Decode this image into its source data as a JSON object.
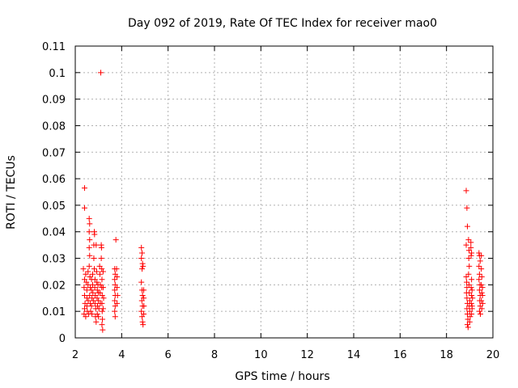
{
  "chart_data": {
    "type": "scatter",
    "title": "Day 092 of 2019, Rate Of TEC Index for receiver mao0",
    "xlabel": "GPS time / hours",
    "ylabel": "ROTI / TECUs",
    "xlim": [
      2,
      20
    ],
    "ylim": [
      0,
      0.11
    ],
    "xticks": [
      2,
      4,
      6,
      8,
      10,
      12,
      14,
      16,
      18,
      20
    ],
    "xtick_labels": [
      "2",
      "4",
      "6",
      "8",
      "10",
      "12",
      "14",
      "16",
      "18",
      "20"
    ],
    "yticks": [
      0,
      0.01,
      0.02,
      0.03,
      0.04,
      0.05,
      0.06,
      0.07,
      0.08,
      0.09,
      0.1,
      0.11
    ],
    "ytick_labels": [
      "0",
      "0.01",
      "0.02",
      "0.03",
      "0.04",
      "0.05",
      "0.06",
      "0.07",
      "0.08",
      "0.09",
      "0.1",
      "0.11"
    ],
    "grid": true,
    "marker": "+",
    "color": "#ff0000",
    "series": [
      {
        "points": [
          [
            2.4,
            0.0565
          ],
          [
            2.4,
            0.049
          ],
          [
            2.35,
            0.026
          ],
          [
            2.4,
            0.022
          ],
          [
            2.38,
            0.019
          ],
          [
            2.4,
            0.016
          ],
          [
            2.42,
            0.013
          ],
          [
            2.4,
            0.011
          ],
          [
            2.38,
            0.009
          ],
          [
            2.45,
            0.008
          ],
          [
            2.45,
            0.024
          ],
          [
            2.48,
            0.021
          ],
          [
            2.5,
            0.018
          ],
          [
            2.5,
            0.015
          ],
          [
            2.5,
            0.012
          ],
          [
            2.52,
            0.01
          ],
          [
            2.55,
            0.025
          ],
          [
            2.55,
            0.02
          ],
          [
            2.56,
            0.014
          ],
          [
            2.58,
            0.009
          ],
          [
            2.6,
            0.045
          ],
          [
            2.62,
            0.043
          ],
          [
            2.6,
            0.04
          ],
          [
            2.62,
            0.037
          ],
          [
            2.6,
            0.034
          ],
          [
            2.62,
            0.031
          ],
          [
            2.6,
            0.027
          ],
          [
            2.63,
            0.023
          ],
          [
            2.65,
            0.019
          ],
          [
            2.62,
            0.016
          ],
          [
            2.65,
            0.013
          ],
          [
            2.66,
            0.01
          ],
          [
            2.7,
            0.022
          ],
          [
            2.7,
            0.018
          ],
          [
            2.72,
            0.015
          ],
          [
            2.7,
            0.012
          ],
          [
            2.72,
            0.009
          ],
          [
            2.75,
            0.024
          ],
          [
            2.75,
            0.02
          ],
          [
            2.76,
            0.017
          ],
          [
            2.78,
            0.014
          ],
          [
            2.8,
            0.035
          ],
          [
            2.82,
            0.04
          ],
          [
            2.83,
            0.039
          ],
          [
            2.8,
            0.03
          ],
          [
            2.82,
            0.026
          ],
          [
            2.85,
            0.022
          ],
          [
            2.84,
            0.019
          ],
          [
            2.86,
            0.016
          ],
          [
            2.85,
            0.013
          ],
          [
            2.88,
            0.011
          ],
          [
            2.87,
            0.008
          ],
          [
            2.9,
            0.006
          ],
          [
            2.9,
            0.035
          ],
          [
            2.92,
            0.025
          ],
          [
            2.93,
            0.021
          ],
          [
            2.95,
            0.018
          ],
          [
            2.94,
            0.015
          ],
          [
            2.96,
            0.012
          ],
          [
            2.95,
            0.009
          ],
          [
            2.98,
            0.02
          ],
          [
            3.0,
            0.017
          ],
          [
            3.0,
            0.014
          ],
          [
            3.02,
            0.011
          ],
          [
            3.0,
            0.008
          ],
          [
            3.05,
            0.027
          ],
          [
            3.06,
            0.024
          ],
          [
            3.08,
            0.02
          ],
          [
            3.07,
            0.017
          ],
          [
            3.08,
            0.013
          ],
          [
            3.1,
            0.1
          ],
          [
            3.12,
            0.035
          ],
          [
            3.13,
            0.034
          ],
          [
            3.12,
            0.03
          ],
          [
            3.14,
            0.026
          ],
          [
            3.15,
            0.022
          ],
          [
            3.14,
            0.019
          ],
          [
            3.16,
            0.016
          ],
          [
            3.15,
            0.013
          ],
          [
            3.16,
            0.01
          ],
          [
            3.17,
            0.007
          ],
          [
            3.15,
            0.005
          ],
          [
            3.18,
            0.003
          ],
          [
            3.2,
            0.025
          ],
          [
            3.2,
            0.019
          ],
          [
            3.22,
            0.015
          ],
          [
            3.2,
            0.011
          ],
          [
            3.7,
            0.026
          ],
          [
            3.72,
            0.024
          ],
          [
            3.7,
            0.022
          ],
          [
            3.72,
            0.02
          ],
          [
            3.7,
            0.018
          ],
          [
            3.72,
            0.016
          ],
          [
            3.7,
            0.014
          ],
          [
            3.72,
            0.012
          ],
          [
            3.7,
            0.01
          ],
          [
            3.72,
            0.008
          ],
          [
            3.75,
            0.037
          ],
          [
            3.78,
            0.026
          ],
          [
            3.8,
            0.023
          ],
          [
            3.8,
            0.019
          ],
          [
            3.82,
            0.016
          ],
          [
            3.8,
            0.013
          ],
          [
            4.85,
            0.034
          ],
          [
            4.88,
            0.032
          ],
          [
            4.85,
            0.03
          ],
          [
            4.9,
            0.028
          ],
          [
            4.88,
            0.026
          ],
          [
            4.92,
            0.027
          ],
          [
            4.85,
            0.021
          ],
          [
            4.88,
            0.018
          ],
          [
            4.9,
            0.016
          ],
          [
            4.87,
            0.014
          ],
          [
            4.9,
            0.012
          ],
          [
            4.85,
            0.01
          ],
          [
            4.88,
            0.008
          ],
          [
            4.9,
            0.006
          ],
          [
            4.92,
            0.005
          ],
          [
            4.95,
            0.018
          ],
          [
            4.95,
            0.015
          ],
          [
            4.96,
            0.012
          ],
          [
            4.95,
            0.009
          ],
          [
            18.85,
            0.0555
          ],
          [
            18.88,
            0.049
          ],
          [
            18.9,
            0.042
          ],
          [
            18.85,
            0.035
          ],
          [
            18.85,
            0.023
          ],
          [
            18.87,
            0.021
          ],
          [
            18.88,
            0.019
          ],
          [
            18.86,
            0.017
          ],
          [
            18.88,
            0.015
          ],
          [
            18.9,
            0.013
          ],
          [
            18.88,
            0.011
          ],
          [
            18.9,
            0.009
          ],
          [
            18.92,
            0.007
          ],
          [
            18.9,
            0.005
          ],
          [
            18.93,
            0.004
          ],
          [
            18.95,
            0.037
          ],
          [
            18.97,
            0.033
          ],
          [
            18.96,
            0.03
          ],
          [
            18.98,
            0.027
          ],
          [
            18.95,
            0.024
          ],
          [
            18.97,
            0.02
          ],
          [
            18.98,
            0.017
          ],
          [
            19.0,
            0.014
          ],
          [
            18.98,
            0.012
          ],
          [
            19.0,
            0.01
          ],
          [
            19.02,
            0.008
          ],
          [
            19.0,
            0.006
          ],
          [
            19.05,
            0.036
          ],
          [
            19.05,
            0.034
          ],
          [
            19.08,
            0.032
          ],
          [
            19.06,
            0.031
          ],
          [
            19.08,
            0.022
          ],
          [
            19.06,
            0.019
          ],
          [
            19.08,
            0.016
          ],
          [
            19.07,
            0.013
          ],
          [
            19.1,
            0.011
          ],
          [
            19.08,
            0.009
          ],
          [
            19.1,
            0.018
          ],
          [
            19.12,
            0.015
          ],
          [
            19.1,
            0.012
          ],
          [
            19.4,
            0.032
          ],
          [
            19.42,
            0.031
          ],
          [
            19.4,
            0.027
          ],
          [
            19.45,
            0.029
          ],
          [
            19.42,
            0.024
          ],
          [
            19.4,
            0.022
          ],
          [
            19.44,
            0.02
          ],
          [
            19.42,
            0.018
          ],
          [
            19.45,
            0.016
          ],
          [
            19.43,
            0.014
          ],
          [
            19.45,
            0.012
          ],
          [
            19.42,
            0.01
          ],
          [
            19.46,
            0.009
          ],
          [
            19.5,
            0.031
          ],
          [
            19.5,
            0.026
          ],
          [
            19.52,
            0.023
          ],
          [
            19.5,
            0.02
          ],
          [
            19.52,
            0.017
          ],
          [
            19.5,
            0.014
          ],
          [
            19.52,
            0.011
          ],
          [
            19.55,
            0.019
          ],
          [
            19.55,
            0.016
          ],
          [
            19.56,
            0.013
          ]
        ]
      }
    ]
  }
}
